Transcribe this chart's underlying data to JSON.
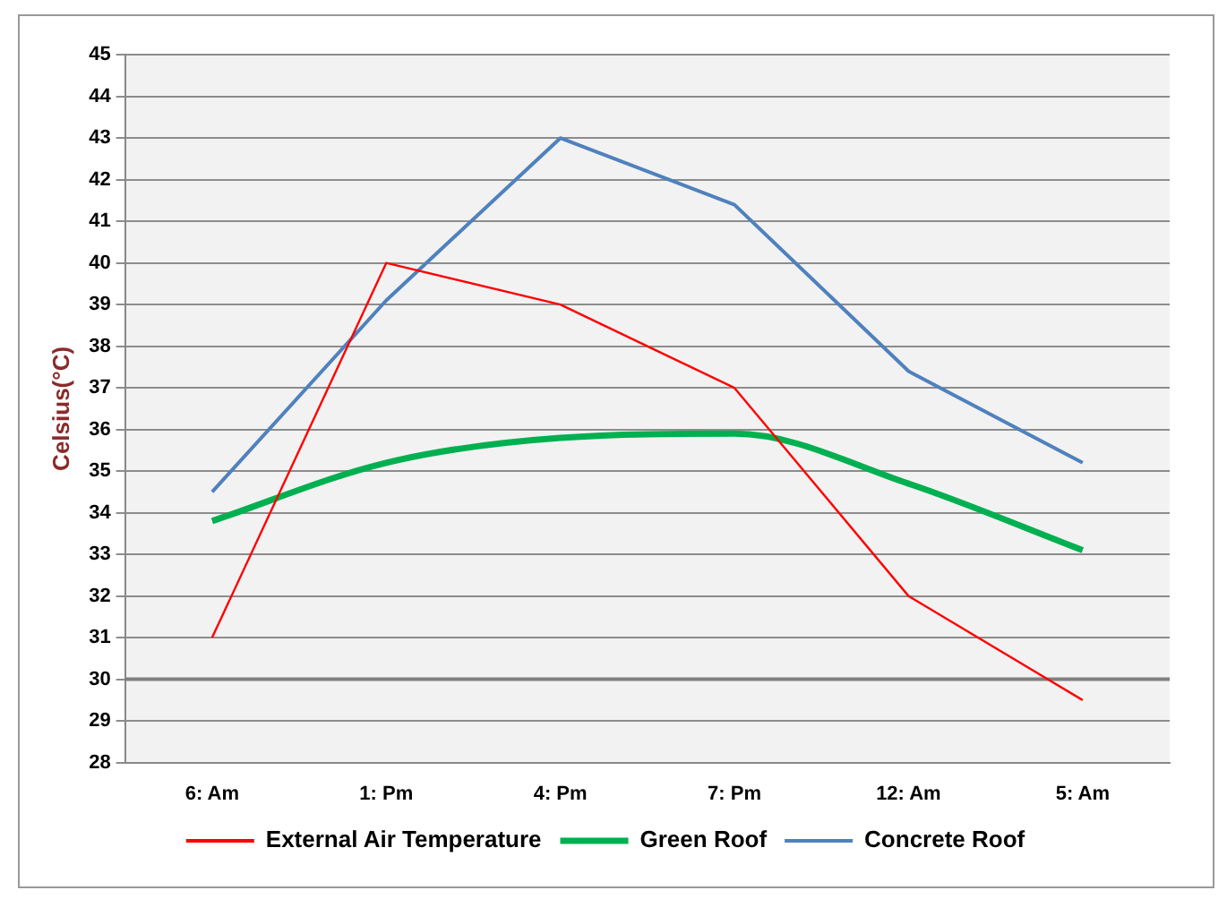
{
  "chart_data": {
    "type": "line",
    "ylabel": "Celsius(°C)",
    "categories": [
      "6: Am",
      "1: Pm",
      "4: Pm",
      "7: Pm",
      "12: Am",
      "5: Am"
    ],
    "series": [
      {
        "name": "External Air Temperature",
        "color": "#ff0000",
        "values": [
          31,
          40,
          39,
          37,
          32,
          29.5
        ]
      },
      {
        "name": "Green Roof",
        "color": "#00b050",
        "values": [
          33.8,
          35.2,
          35.8,
          35.9,
          34.7,
          33.1
        ]
      },
      {
        "name": "Concrete Roof",
        "color": "#4f81bd",
        "values": [
          34.5,
          39.1,
          43,
          41.4,
          37.4,
          35.2
        ]
      }
    ],
    "ylim": [
      28,
      45
    ],
    "yticks": [
      28,
      29,
      30,
      31,
      32,
      33,
      34,
      35,
      36,
      37,
      38,
      39,
      40,
      41,
      42,
      43,
      44,
      45
    ],
    "ref_lines": [
      {
        "axis": "y",
        "value": 30,
        "color": "#7f7f7f"
      }
    ],
    "grid": "y",
    "legend": "bottom",
    "marker": "none",
    "line_style": "solid"
  }
}
